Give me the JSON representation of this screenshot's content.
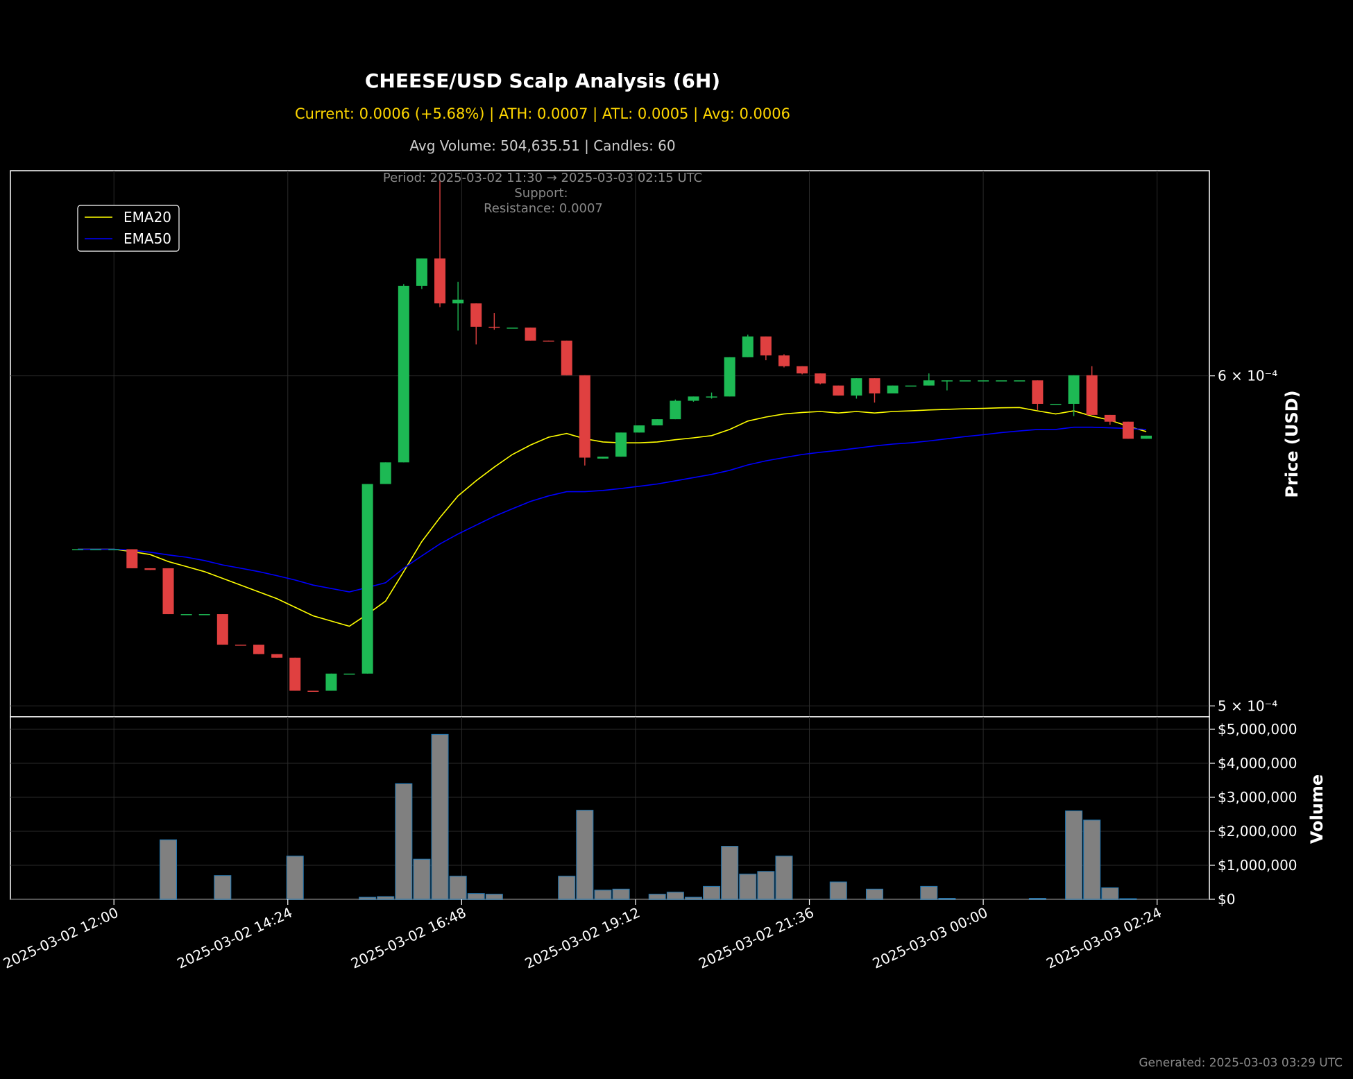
{
  "header": {
    "title": "CHEESE/USD Scalp Analysis (6H)",
    "stats_line": "Current: 0.0006 (+5.68%) | ATH: 0.0007 | ATL: 0.0005 | Avg: 0.0006",
    "volume_line": "Avg Volume: 504,635.51 | Candles: 60",
    "period_line": "Period: 2025-03-02 11:30 → 2025-03-03 02:15 UTC",
    "support_line": "Support:",
    "resistance_line": "Resistance: 0.0007"
  },
  "footer": {
    "generated": "Generated: 2025-03-03 03:29 UTC"
  },
  "colors": {
    "background": "#000000",
    "up": "#1db954",
    "down": "#e04040",
    "ema20": "#ffff00",
    "ema50": "#0000ff",
    "volume_bar": "#808080",
    "volume_edge": "#1f77b4",
    "grid": "#2a2a2a",
    "title_stats": "#ffd700"
  },
  "chart_data": {
    "type": "candlestick",
    "y_scale": "log",
    "ylabel": "Price (USD)",
    "volume_label": "Volume",
    "grid": true,
    "legend": {
      "position": "top-left",
      "entries": [
        "EMA20",
        "EMA50"
      ]
    },
    "x_tick_labels": [
      "2025-03-02 12:00",
      "2025-03-02 14:24",
      "2025-03-02 16:48",
      "2025-03-02 19:12",
      "2025-03-02 21:36",
      "2025-03-03 00:00",
      "2025-03-03 02:24"
    ],
    "y_ticks": [
      {
        "value": 0.0006,
        "label": "6 × 10⁻⁴"
      },
      {
        "value": 0.0005,
        "label": "5 × 10⁻⁴"
      }
    ],
    "ylim": [
      0.000497,
      0.000672
    ],
    "volume_ticks": [
      "$0",
      "$1,000,000",
      "$2,000,000",
      "$3,000,000",
      "$4,000,000",
      "$5,000,000"
    ],
    "volume_ylim": [
      0,
      5000000
    ],
    "x_start": "2025-03-02 11:30",
    "x_end": "2025-03-03 02:15",
    "interval_minutes": 15,
    "candles": [
      {
        "t": "2025-03-02 11:30",
        "o": 0.0005452,
        "h": 0.0005452,
        "l": 0.0005452,
        "c": 0.0005452,
        "v": 0
      },
      {
        "t": "2025-03-02 11:45",
        "o": 0.0005452,
        "h": 0.0005452,
        "l": 0.0005452,
        "c": 0.0005452,
        "v": 0
      },
      {
        "t": "2025-03-02 12:00",
        "o": 0.0005452,
        "h": 0.0005452,
        "l": 0.0005452,
        "c": 0.0005452,
        "v": 0
      },
      {
        "t": "2025-03-02 12:15",
        "o": 0.0005452,
        "h": 0.0005452,
        "l": 0.0005395,
        "c": 0.0005395,
        "v": 0
      },
      {
        "t": "2025-03-02 12:30",
        "o": 0.0005395,
        "h": 0.0005395,
        "l": 0.000539,
        "c": 0.000539,
        "v": 0
      },
      {
        "t": "2025-03-02 12:45",
        "o": 0.0005395,
        "h": 0.0005395,
        "l": 0.000526,
        "c": 0.000526,
        "v": 1750000
      },
      {
        "t": "2025-03-02 13:00",
        "o": 0.000526,
        "h": 0.000526,
        "l": 0.000526,
        "c": 0.000526,
        "v": 0
      },
      {
        "t": "2025-03-02 13:15",
        "o": 0.000526,
        "h": 0.000526,
        "l": 0.000526,
        "c": 0.000526,
        "v": 0
      },
      {
        "t": "2025-03-02 13:30",
        "o": 0.000526,
        "h": 0.000526,
        "l": 0.0005172,
        "c": 0.0005172,
        "v": 700000
      },
      {
        "t": "2025-03-02 13:45",
        "o": 0.0005172,
        "h": 0.0005172,
        "l": 0.000517,
        "c": 0.000517,
        "v": 0
      },
      {
        "t": "2025-03-02 14:00",
        "o": 0.0005172,
        "h": 0.0005172,
        "l": 0.0005145,
        "c": 0.0005145,
        "v": 0
      },
      {
        "t": "2025-03-02 14:15",
        "o": 0.0005145,
        "h": 0.0005145,
        "l": 0.0005135,
        "c": 0.0005135,
        "v": 0
      },
      {
        "t": "2025-03-02 14:30",
        "o": 0.0005135,
        "h": 0.0005135,
        "l": 0.0005042,
        "c": 0.0005042,
        "v": 1270000
      },
      {
        "t": "2025-03-02 14:45",
        "o": 0.0005042,
        "h": 0.0005042,
        "l": 0.000504,
        "c": 0.000504,
        "v": 0
      },
      {
        "t": "2025-03-02 15:00",
        "o": 0.0005042,
        "h": 0.000509,
        "l": 0.0005042,
        "c": 0.000509,
        "v": 0
      },
      {
        "t": "2025-03-02 15:15",
        "o": 0.000509,
        "h": 0.000509,
        "l": 0.000509,
        "c": 0.000509,
        "v": 0
      },
      {
        "t": "2025-03-02 15:30",
        "o": 0.000509,
        "h": 0.0005652,
        "l": 0.000509,
        "c": 0.0005652,
        "v": 60000
      },
      {
        "t": "2025-03-02 15:45",
        "o": 0.0005652,
        "h": 0.000572,
        "l": 0.0005652,
        "c": 0.000572,
        "v": 80000
      },
      {
        "t": "2025-03-02 16:00",
        "o": 0.000572,
        "h": 0.0006312,
        "l": 0.000572,
        "c": 0.0006306,
        "v": 3400000
      },
      {
        "t": "2025-03-02 16:15",
        "o": 0.0006306,
        "h": 0.0006402,
        "l": 0.0006295,
        "c": 0.0006402,
        "v": 1180000
      },
      {
        "t": "2025-03-02 16:30",
        "o": 0.0006402,
        "h": 0.0006682,
        "l": 0.0006232,
        "c": 0.0006245,
        "v": 4850000
      },
      {
        "t": "2025-03-02 16:45",
        "o": 0.0006245,
        "h": 0.000632,
        "l": 0.0006152,
        "c": 0.0006258,
        "v": 680000
      },
      {
        "t": "2025-03-02 17:00",
        "o": 0.0006245,
        "h": 0.0006245,
        "l": 0.0006105,
        "c": 0.0006165,
        "v": 170000
      },
      {
        "t": "2025-03-02 17:15",
        "o": 0.0006165,
        "h": 0.0006212,
        "l": 0.0006155,
        "c": 0.0006162,
        "v": 150000
      },
      {
        "t": "2025-03-02 17:30",
        "o": 0.0006162,
        "h": 0.0006162,
        "l": 0.0006162,
        "c": 0.0006162,
        "v": 0
      },
      {
        "t": "2025-03-02 17:45",
        "o": 0.0006162,
        "h": 0.0006162,
        "l": 0.0006118,
        "c": 0.0006118,
        "v": 0
      },
      {
        "t": "2025-03-02 18:00",
        "o": 0.0006118,
        "h": 0.0006118,
        "l": 0.0006115,
        "c": 0.0006115,
        "v": 0
      },
      {
        "t": "2025-03-02 18:15",
        "o": 0.0006118,
        "h": 0.0006118,
        "l": 0.0006002,
        "c": 0.0006002,
        "v": 680000
      },
      {
        "t": "2025-03-02 18:30",
        "o": 0.0006002,
        "h": 0.0006002,
        "l": 0.000571,
        "c": 0.0005735,
        "v": 2620000
      },
      {
        "t": "2025-03-02 18:45",
        "o": 0.0005732,
        "h": 0.0005738,
        "l": 0.0005732,
        "c": 0.0005738,
        "v": 270000
      },
      {
        "t": "2025-03-02 19:00",
        "o": 0.0005738,
        "h": 0.0005815,
        "l": 0.0005738,
        "c": 0.0005815,
        "v": 300000
      },
      {
        "t": "2025-03-02 19:15",
        "o": 0.0005815,
        "h": 0.0005838,
        "l": 0.0005815,
        "c": 0.0005838,
        "v": 0
      },
      {
        "t": "2025-03-02 19:30",
        "o": 0.0005838,
        "h": 0.0005858,
        "l": 0.0005838,
        "c": 0.0005858,
        "v": 150000
      },
      {
        "t": "2025-03-02 19:45",
        "o": 0.0005858,
        "h": 0.0005922,
        "l": 0.0005858,
        "c": 0.0005918,
        "v": 210000
      },
      {
        "t": "2025-03-02 20:00",
        "o": 0.0005918,
        "h": 0.0005932,
        "l": 0.0005915,
        "c": 0.0005932,
        "v": 60000
      },
      {
        "t": "2025-03-02 20:15",
        "o": 0.0005932,
        "h": 0.0005945,
        "l": 0.0005925,
        "c": 0.0005932,
        "v": 380000
      },
      {
        "t": "2025-03-02 20:30",
        "o": 0.0005932,
        "h": 0.0006062,
        "l": 0.0005932,
        "c": 0.0006062,
        "v": 1560000
      },
      {
        "t": "2025-03-02 20:45",
        "o": 0.0006062,
        "h": 0.0006138,
        "l": 0.0006062,
        "c": 0.0006132,
        "v": 740000
      },
      {
        "t": "2025-03-02 21:00",
        "o": 0.0006132,
        "h": 0.0006132,
        "l": 0.0006052,
        "c": 0.0006068,
        "v": 820000
      },
      {
        "t": "2025-03-02 21:15",
        "o": 0.0006068,
        "h": 0.0006072,
        "l": 0.0006028,
        "c": 0.0006032,
        "v": 1270000
      },
      {
        "t": "2025-03-02 21:30",
        "o": 0.0006032,
        "h": 0.0006032,
        "l": 0.0006005,
        "c": 0.0006008,
        "v": 0
      },
      {
        "t": "2025-03-02 21:45",
        "o": 0.0006008,
        "h": 0.0006008,
        "l": 0.0005972,
        "c": 0.0005975,
        "v": 0
      },
      {
        "t": "2025-03-02 22:00",
        "o": 0.0005968,
        "h": 0.0005968,
        "l": 0.0005935,
        "c": 0.0005935,
        "v": 510000
      },
      {
        "t": "2025-03-02 22:15",
        "o": 0.0005935,
        "h": 0.0005992,
        "l": 0.0005925,
        "c": 0.0005992,
        "v": 0
      },
      {
        "t": "2025-03-02 22:30",
        "o": 0.0005992,
        "h": 0.0005992,
        "l": 0.0005912,
        "c": 0.0005942,
        "v": 300000
      },
      {
        "t": "2025-03-02 22:45",
        "o": 0.0005942,
        "h": 0.0005968,
        "l": 0.0005942,
        "c": 0.0005968,
        "v": 0
      },
      {
        "t": "2025-03-02 23:00",
        "o": 0.0005968,
        "h": 0.0005968,
        "l": 0.0005968,
        "c": 0.0005968,
        "v": 0
      },
      {
        "t": "2025-03-02 23:15",
        "o": 0.0005968,
        "h": 0.0006008,
        "l": 0.0005968,
        "c": 0.0005985,
        "v": 380000
      },
      {
        "t": "2025-03-02 23:30",
        "o": 0.0005985,
        "h": 0.0005985,
        "l": 0.0005952,
        "c": 0.0005985,
        "v": 30000
      },
      {
        "t": "2025-03-02 23:45",
        "o": 0.0005985,
        "h": 0.0005985,
        "l": 0.0005985,
        "c": 0.0005985,
        "v": 0
      },
      {
        "t": "2025-03-03 00:00",
        "o": 0.0005985,
        "h": 0.0005985,
        "l": 0.0005985,
        "c": 0.0005985,
        "v": 0
      },
      {
        "t": "2025-03-03 00:15",
        "o": 0.0005985,
        "h": 0.0005985,
        "l": 0.0005985,
        "c": 0.0005985,
        "v": 0
      },
      {
        "t": "2025-03-03 00:30",
        "o": 0.0005985,
        "h": 0.0005985,
        "l": 0.0005985,
        "c": 0.0005985,
        "v": 0
      },
      {
        "t": "2025-03-03 00:45",
        "o": 0.0005985,
        "h": 0.0005985,
        "l": 0.0005888,
        "c": 0.0005908,
        "v": 30000
      },
      {
        "t": "2025-03-03 01:00",
        "o": 0.0005908,
        "h": 0.0005908,
        "l": 0.0005908,
        "c": 0.0005908,
        "v": 0
      },
      {
        "t": "2025-03-03 01:15",
        "o": 0.0005908,
        "h": 0.0006002,
        "l": 0.0005868,
        "c": 0.0006002,
        "v": 2600000
      },
      {
        "t": "2025-03-03 01:30",
        "o": 0.0006002,
        "h": 0.0006032,
        "l": 0.0005872,
        "c": 0.0005872,
        "v": 2330000
      },
      {
        "t": "2025-03-03 01:45",
        "o": 0.0005872,
        "h": 0.0005872,
        "l": 0.000584,
        "c": 0.000585,
        "v": 340000
      },
      {
        "t": "2025-03-03 02:00",
        "o": 0.000585,
        "h": 0.000585,
        "l": 0.0005795,
        "c": 0.0005795,
        "v": 20000
      },
      {
        "t": "2025-03-03 02:15",
        "o": 0.0005795,
        "h": 0.0005805,
        "l": 0.0005795,
        "c": 0.0005805,
        "v": 0
      }
    ],
    "series": [
      {
        "name": "EMA20",
        "values": [
          0.0005452,
          0.0005452,
          0.0005452,
          0.0005445,
          0.0005436,
          0.0005415,
          0.00054,
          0.0005385,
          0.0005365,
          0.0005345,
          0.0005325,
          0.0005305,
          0.000528,
          0.0005255,
          0.000524,
          0.0005225,
          0.000526,
          0.0005298,
          0.0005385,
          0.0005475,
          0.0005548,
          0.0005615,
          0.0005662,
          0.0005705,
          0.0005745,
          0.0005775,
          0.00058,
          0.0005812,
          0.0005795,
          0.0005785,
          0.0005782,
          0.0005782,
          0.0005785,
          0.0005792,
          0.0005798,
          0.0005805,
          0.0005825,
          0.0005852,
          0.0005865,
          0.0005875,
          0.000588,
          0.0005883,
          0.0005878,
          0.0005883,
          0.0005878,
          0.0005883,
          0.0005885,
          0.0005888,
          0.000589,
          0.0005892,
          0.0005893,
          0.0005895,
          0.0005896,
          0.0005885,
          0.0005875,
          0.0005885,
          0.0005868,
          0.0005855,
          0.0005835,
          0.0005818
        ]
      },
      {
        "name": "EMA50",
        "values": [
          0.0005452,
          0.0005452,
          0.0005452,
          0.0005449,
          0.0005443,
          0.0005435,
          0.0005428,
          0.0005418,
          0.0005405,
          0.0005395,
          0.0005385,
          0.0005373,
          0.000536,
          0.0005345,
          0.0005335,
          0.0005325,
          0.0005338,
          0.0005352,
          0.0005395,
          0.0005432,
          0.0005468,
          0.0005498,
          0.0005525,
          0.0005552,
          0.0005575,
          0.0005598,
          0.0005615,
          0.0005628,
          0.0005628,
          0.0005632,
          0.0005638,
          0.0005645,
          0.0005652,
          0.0005662,
          0.0005672,
          0.0005682,
          0.0005695,
          0.0005712,
          0.0005725,
          0.0005735,
          0.0005745,
          0.0005752,
          0.0005758,
          0.0005765,
          0.0005772,
          0.0005778,
          0.0005782,
          0.0005788,
          0.0005795,
          0.0005802,
          0.0005808,
          0.0005815,
          0.000582,
          0.0005825,
          0.0005825,
          0.0005832,
          0.0005832,
          0.000583,
          0.0005828,
          0.0005825
        ]
      }
    ]
  }
}
